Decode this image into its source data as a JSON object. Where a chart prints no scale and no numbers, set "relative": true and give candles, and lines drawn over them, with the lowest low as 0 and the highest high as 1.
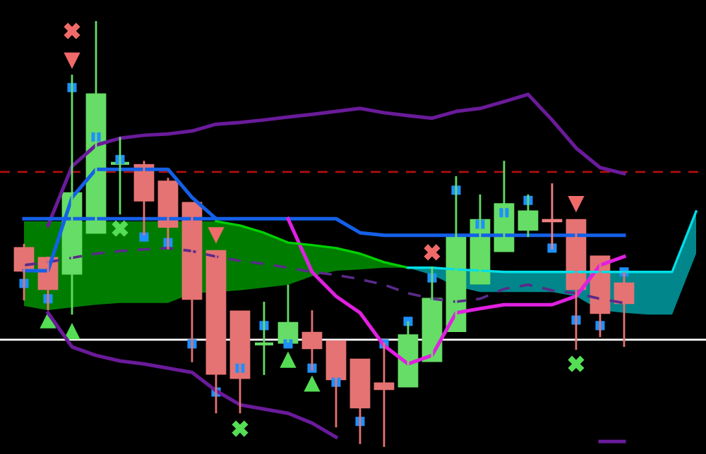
{
  "chart_data": {
    "type": "candlestick",
    "relative": true,
    "categories": [
      null,
      null,
      null,
      null,
      null,
      null,
      null,
      null,
      null,
      null,
      null,
      null,
      null,
      null,
      null,
      null,
      null,
      null,
      null,
      null,
      null,
      null,
      null,
      null,
      null,
      null,
      null,
      null,
      null
    ],
    "ohlc": [
      [
        0.467,
        0.477,
        0.344,
        0.414
      ],
      [
        0.444,
        0.447,
        0.321,
        0.371
      ],
      [
        0.407,
        0.874,
        0.311,
        0.596
      ],
      [
        0.503,
        1.0,
        0.503,
        0.828
      ],
      [
        0.666,
        0.728,
        0.546,
        0.666
      ],
      [
        0.662,
        0.672,
        0.497,
        0.579
      ],
      [
        0.623,
        0.632,
        0.464,
        0.517
      ],
      [
        0.573,
        0.573,
        0.199,
        0.348
      ],
      [
        0.46,
        0.46,
        0.079,
        0.172
      ],
      [
        0.318,
        0.318,
        0.079,
        0.162
      ],
      [
        0.242,
        0.341,
        0.169,
        0.242
      ],
      [
        0.245,
        0.381,
        0.245,
        0.291
      ],
      [
        0.268,
        0.321,
        0.179,
        0.232
      ],
      [
        0.248,
        0.248,
        0.046,
        0.159
      ],
      [
        0.205,
        0.205,
        0.007,
        0.093
      ],
      [
        0.149,
        0.245,
        0.0,
        0.136
      ],
      [
        0.142,
        0.295,
        0.142,
        0.262
      ],
      [
        0.202,
        0.424,
        0.202,
        0.348
      ],
      [
        0.272,
        0.636,
        0.272,
        0.493
      ],
      [
        0.384,
        0.593,
        0.384,
        0.533
      ],
      [
        0.46,
        0.672,
        0.46,
        0.57
      ],
      [
        0.51,
        0.593,
        0.493,
        0.553
      ],
      [
        0.533,
        0.619,
        0.464,
        0.53
      ],
      [
        0.533,
        0.533,
        0.228,
        0.371
      ],
      [
        0.447,
        0.447,
        0.258,
        0.315
      ],
      [
        0.384,
        0.411,
        0.235,
        0.338
      ],
      null,
      null,
      null
    ],
    "colors": [
      "#e57373",
      "#e57373",
      "#66dd66",
      "#66dd66",
      "#66dd66",
      "#e57373",
      "#e57373",
      "#e57373",
      "#e57373",
      "#e57373",
      "#66dd66",
      "#66dd66",
      "#e57373",
      "#e57373",
      "#e57373",
      "#e57373",
      "#66dd66",
      "#66dd66",
      "#66dd66",
      "#66dd66",
      "#66dd66",
      "#66dd66",
      "#f08080",
      "#e57373",
      "#e57373",
      "#e57373",
      null,
      null,
      null
    ],
    "series": [
      {
        "type": "line",
        "color": "#00d000",
        "values": [
          null,
          null,
          null,
          null,
          null,
          null,
          null,
          null,
          0.53,
          0.52,
          0.503,
          0.48,
          0.474,
          0.467,
          0.454,
          0.434,
          0.421,
          null,
          null,
          null,
          null,
          null,
          null,
          null,
          null,
          null,
          null,
          null,
          null
        ],
        "upper": [
          0.53,
          0.53,
          0.53,
          0.53,
          0.53,
          0.53,
          0.53,
          0.53,
          0.53,
          0.52,
          0.503,
          0.48,
          0.474,
          0.467,
          0.454,
          0.434,
          0.421,
          null,
          null,
          null,
          null,
          null,
          null,
          null,
          null,
          null,
          null,
          null,
          null
        ],
        "lower": [
          0.331,
          0.321,
          0.328,
          0.334,
          0.338,
          0.338,
          0.338,
          0.361,
          0.364,
          0.368,
          0.374,
          0.381,
          0.401,
          0.414,
          0.417,
          0.421,
          0.421,
          null,
          null,
          null,
          null,
          null,
          null,
          null,
          null,
          null,
          null,
          null,
          null
        ]
      },
      {
        "type": "line",
        "color": "#00e0e8",
        "values": [
          null,
          null,
          null,
          null,
          null,
          null,
          null,
          null,
          null,
          null,
          null,
          null,
          null,
          null,
          null,
          null,
          0.421,
          0.421,
          0.417,
          0.414,
          0.411,
          0.411,
          0.411,
          0.411,
          0.411,
          0.411,
          0.411,
          0.411,
          0.553
        ],
        "upper": [
          null,
          null,
          null,
          null,
          null,
          null,
          null,
          null,
          null,
          null,
          null,
          null,
          null,
          null,
          null,
          null,
          0.421,
          0.421,
          0.417,
          0.414,
          0.411,
          0.411,
          0.411,
          0.411,
          0.411,
          0.411,
          0.411,
          0.411,
          0.553
        ],
        "lower": [
          null,
          null,
          null,
          null,
          null,
          null,
          null,
          null,
          null,
          null,
          null,
          null,
          null,
          null,
          null,
          null,
          0.421,
          0.404,
          0.377,
          0.364,
          0.364,
          0.364,
          0.364,
          0.354,
          0.321,
          0.315,
          0.311,
          0.311,
          0.454
        ]
      },
      {
        "type": "line",
        "color": "#5a2a8a",
        "line_style": "dashed",
        "values": [
          0.427,
          0.434,
          0.444,
          0.454,
          0.46,
          0.464,
          0.467,
          0.46,
          0.447,
          0.437,
          0.43,
          0.421,
          0.411,
          0.404,
          0.394,
          0.381,
          0.361,
          0.348,
          0.341,
          0.348,
          0.371,
          0.381,
          0.368,
          0.361,
          0.348,
          0.338,
          null,
          null,
          null
        ]
      },
      {
        "type": "line",
        "color": "#6a1b9a",
        "values": [
          null,
          0.52,
          0.659,
          0.709,
          0.725,
          0.732,
          0.735,
          0.742,
          0.758,
          0.762,
          0.768,
          0.775,
          0.781,
          0.788,
          0.795,
          0.785,
          0.778,
          0.772,
          0.788,
          0.795,
          0.811,
          0.828,
          0.768,
          0.702,
          0.656,
          0.642,
          null,
          null,
          null
        ]
      },
      {
        "type": "line",
        "color": "#6a1b9a",
        "values": [
          null,
          0.315,
          0.235,
          0.215,
          0.202,
          0.195,
          0.185,
          0.175,
          0.132,
          0.099,
          0.089,
          0.079,
          0.056,
          0.023,
          null,
          null,
          null,
          null,
          null,
          null,
          null,
          null,
          null,
          null,
          0.013,
          0.013,
          null,
          null,
          null
        ]
      },
      {
        "type": "line",
        "color": "#1560e8",
        "values": [
          0.536,
          0.536,
          0.536,
          0.536,
          0.536,
          0.536,
          0.536,
          0.536,
          0.536,
          0.536,
          0.536,
          0.536,
          0.536,
          0.536,
          0.503,
          0.497,
          0.497,
          0.497,
          0.497,
          0.497,
          0.497,
          0.497,
          0.497,
          0.497,
          0.497,
          0.497,
          null,
          null,
          null
        ]
      },
      {
        "type": "line",
        "color": "#1560e8",
        "values": [
          0.414,
          0.414,
          0.586,
          0.652,
          0.652,
          0.652,
          0.652,
          0.586,
          0.536,
          null,
          null,
          null,
          null,
          null,
          null,
          null,
          null,
          null,
          null,
          null,
          null,
          null,
          null,
          null,
          null,
          null,
          null,
          null,
          null
        ]
      },
      {
        "type": "line",
        "color": "#e020e0",
        "values": [
          null,
          null,
          null,
          null,
          null,
          null,
          null,
          null,
          null,
          null,
          null,
          0.536,
          0.411,
          0.354,
          0.315,
          0.238,
          0.195,
          0.215,
          0.315,
          0.325,
          0.334,
          0.334,
          0.334,
          0.354,
          0.427,
          0.447,
          null,
          null,
          null
        ]
      },
      {
        "type": "scatter",
        "color": "#1e90ff",
        "marker": "square",
        "values": [
          0.384,
          0.348,
          0.844,
          0.728,
          0.675,
          0.493,
          0.48,
          0.242,
          0.129,
          0.185,
          0.285,
          0.242,
          0.185,
          0.152,
          0.06,
          0.242,
          0.295,
          0.397,
          0.603,
          0.523,
          0.55,
          0.579,
          0.467,
          0.298,
          0.285,
          0.411,
          null,
          null,
          null
        ]
      },
      {
        "type": "scatter",
        "color": "#f06a6a",
        "marker": "cross",
        "values": [
          null,
          null,
          0.977,
          null,
          null,
          null,
          null,
          null,
          null,
          null,
          null,
          null,
          null,
          null,
          null,
          null,
          null,
          0.457,
          null,
          null,
          null,
          null,
          null,
          null,
          null,
          null,
          null,
          null,
          null
        ]
      },
      {
        "type": "scatter",
        "color": "#55dd55",
        "marker": "cross",
        "values": [
          null,
          null,
          null,
          null,
          0.513,
          null,
          null,
          null,
          null,
          0.043,
          null,
          null,
          null,
          null,
          null,
          null,
          null,
          null,
          null,
          null,
          null,
          null,
          null,
          0.195,
          null,
          null,
          null,
          null,
          null
        ]
      },
      {
        "type": "scatter",
        "color": "#f06a6a",
        "marker": "triangle",
        "values": [
          null,
          null,
          0.907,
          null,
          null,
          null,
          null,
          null,
          0.497,
          null,
          null,
          null,
          null,
          null,
          null,
          null,
          null,
          null,
          null,
          null,
          null,
          null,
          null,
          0.57,
          null,
          null,
          null,
          null,
          null
        ]
      },
      {
        "type": "scatter",
        "color": "#55dd55",
        "marker": "triangle",
        "values": [
          null,
          0.298,
          0.272,
          null,
          null,
          null,
          null,
          null,
          null,
          null,
          null,
          0.205,
          0.149,
          null,
          null,
          null,
          null,
          null,
          null,
          null,
          null,
          null,
          null,
          null,
          null,
          null,
          null,
          null,
          null
        ]
      }
    ],
    "ref_lines": [
      {
        "axis": "y",
        "value": 0.252,
        "color": "#ffffff",
        "line_style": "solid"
      },
      {
        "axis": "y",
        "value": 0.646,
        "color": "#b01010",
        "line_style": "dashed"
      }
    ]
  }
}
